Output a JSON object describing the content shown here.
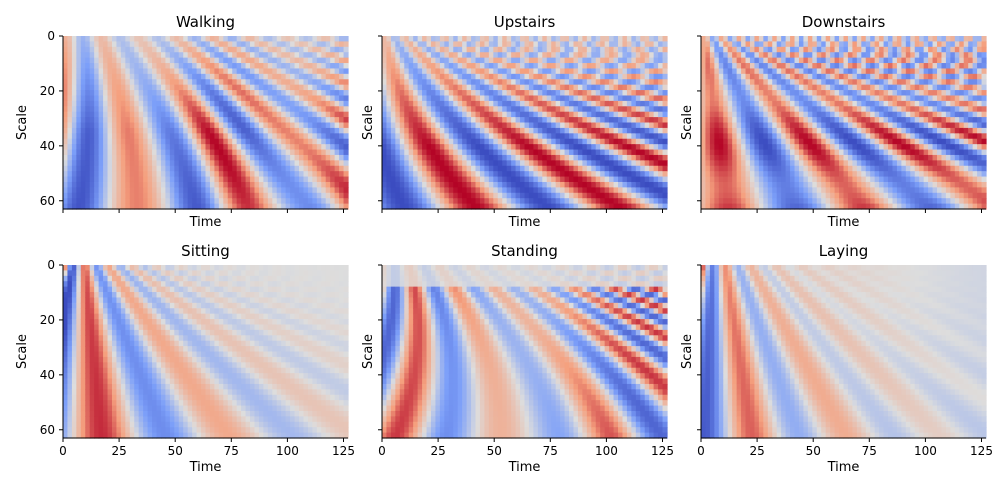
{
  "chart_data": {
    "type": "heatmap",
    "colormap": "coolwarm",
    "x_range": [
      0,
      127
    ],
    "y_range": [
      0,
      63
    ],
    "y_inverted": true,
    "grid": false,
    "layout": "2 rows x 3 columns, shared axes",
    "x_ticks": [
      "0",
      "25",
      "50",
      "75",
      "100",
      "125"
    ],
    "y_ticks": [
      "0",
      "20",
      "40",
      "60"
    ],
    "xlabel": "Time",
    "ylabel": "Scale",
    "panels": [
      {
        "title": "Walking",
        "row": 0,
        "col": 0,
        "show_ylabel": true,
        "show_xticklabels": false
      },
      {
        "title": "Upstairs",
        "row": 0,
        "col": 1,
        "show_ylabel": true,
        "show_xticklabels": false
      },
      {
        "title": "Downstairs",
        "row": 0,
        "col": 2,
        "show_ylabel": true,
        "show_xticklabels": false
      },
      {
        "title": "Sitting",
        "row": 1,
        "col": 0,
        "show_ylabel": true,
        "show_xticklabels": true
      },
      {
        "title": "Standing",
        "row": 1,
        "col": 1,
        "show_ylabel": true,
        "show_xticklabels": true
      },
      {
        "title": "Laying",
        "row": 1,
        "col": 2,
        "show_ylabel": true,
        "show_xticklabels": true
      }
    ]
  }
}
